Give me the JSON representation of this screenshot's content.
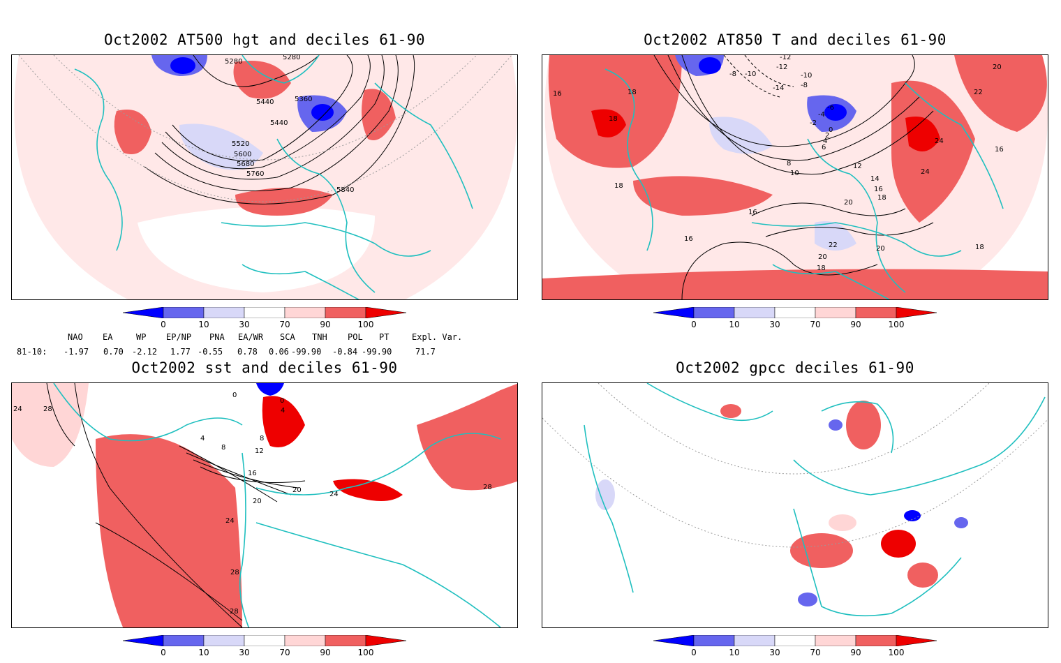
{
  "panels": [
    {
      "id": "p1",
      "title": "Oct2002 AT500 hgt and deciles 61-90",
      "contour_labels": [
        "5280",
        "5280",
        "5440",
        "5360",
        "5440",
        "5520",
        "5600",
        "5680",
        "5760",
        "5840"
      ]
    },
    {
      "id": "p2",
      "title": "Oct2002 AT850 T and deciles 61-90",
      "contour_labels": [
        "16",
        "18",
        "18",
        "18",
        "-8",
        "-10",
        "-12",
        "-12",
        "-14",
        "-10",
        "-8",
        "20",
        "22",
        "24",
        "24",
        "16",
        "-6",
        "-4",
        "-2",
        "0",
        "2",
        "4",
        "6",
        "8",
        "10",
        "12",
        "14",
        "16",
        "18",
        "16",
        "20",
        "22",
        "20",
        "20",
        "18",
        "16",
        "18"
      ]
    },
    {
      "id": "p3",
      "title": "Oct2002 sst and deciles 61-90",
      "contour_labels": [
        "24",
        "28",
        "0",
        "0",
        "4",
        "4",
        "8",
        "8",
        "12",
        "16",
        "20",
        "20",
        "24",
        "24",
        "28",
        "28",
        "28"
      ]
    },
    {
      "id": "p4",
      "title": "Oct2002 gpcc deciles 61-90",
      "contour_labels": []
    }
  ],
  "colorbar": {
    "ticks": [
      "0",
      "10",
      "30",
      "70",
      "90",
      "100"
    ],
    "colors": [
      "#0000ff",
      "#6666ee",
      "#d8d8f8",
      "#ffffff",
      "#ffd6d6",
      "#f06060",
      "#ee0000"
    ]
  },
  "indices": {
    "header": [
      "NAO",
      "EA",
      "WP",
      "EP/NP",
      "PNA",
      "EA/WR",
      "SCA",
      "TNH",
      "POL",
      "PT",
      "Expl. Var."
    ],
    "row_label": "81-10:",
    "values": [
      "-1.97",
      "0.70",
      "-2.12",
      "1.77",
      "-0.55",
      "0.78",
      "0.06",
      "-99.90",
      "-0.84",
      "-99.90",
      "71.7"
    ]
  }
}
